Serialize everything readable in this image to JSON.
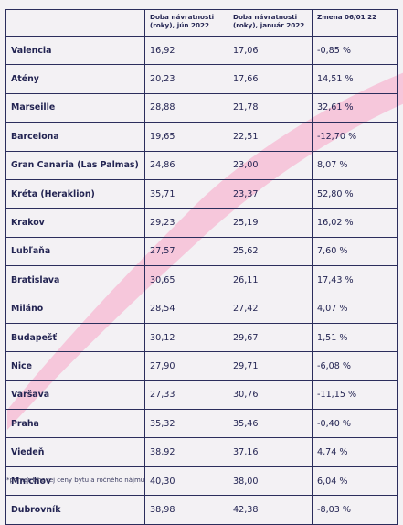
{
  "table": {
    "headers": [
      "",
      "Doba návratnosti (roky), jún 2022",
      "Doba návratnosti (roky), január 2022",
      "Zmena 06/01 22"
    ],
    "rows": [
      [
        "Valencia",
        "16,92",
        "17,06",
        "-0,85 %"
      ],
      [
        "Atény",
        "20,23",
        "17,66",
        "14,51 %"
      ],
      [
        "Marseille",
        "28,88",
        "21,78",
        "32,61 %"
      ],
      [
        "Barcelona",
        "19,65",
        "22,51",
        "-12,70 %"
      ],
      [
        "Gran Canaria (Las Palmas)",
        "24,86",
        "23,00",
        "8,07 %"
      ],
      [
        "Kréta (Heraklion)",
        "35,71",
        "23,37",
        "52,80 %"
      ],
      [
        "Krakov",
        "29,23",
        "25,19",
        "16,02 %"
      ],
      [
        "Lubľaňa",
        "27,57",
        "25,62",
        "7,60 %"
      ],
      [
        "Bratislava",
        "30,65",
        "26,11",
        "17,43 %"
      ],
      [
        "Miláno",
        "28,54",
        "27,42",
        "4,07 %"
      ],
      [
        "Budapešť",
        "30,12",
        "29,67",
        "1,51 %"
      ],
      [
        "Nice",
        "27,90",
        "29,71",
        "-6,08 %"
      ],
      [
        "Varšava",
        "27,33",
        "30,76",
        "-11,15 %"
      ],
      [
        "Praha",
        "35,32",
        "35,46",
        "-0,40 %"
      ],
      [
        "Viedeň",
        "38,92",
        "37,16",
        "4,74 %"
      ],
      [
        "Mníchov",
        "40,30",
        "38,00",
        "6,04 %"
      ],
      [
        "Dubrovník",
        "38,98",
        "42,38",
        "-8,03 %"
      ]
    ]
  },
  "footnote": "*pomer trhovej ceny bytu a ročného nájmu",
  "colors": {
    "ink": "#232452",
    "background": "#f3f1f4",
    "stripe": "#f6bfd6"
  }
}
